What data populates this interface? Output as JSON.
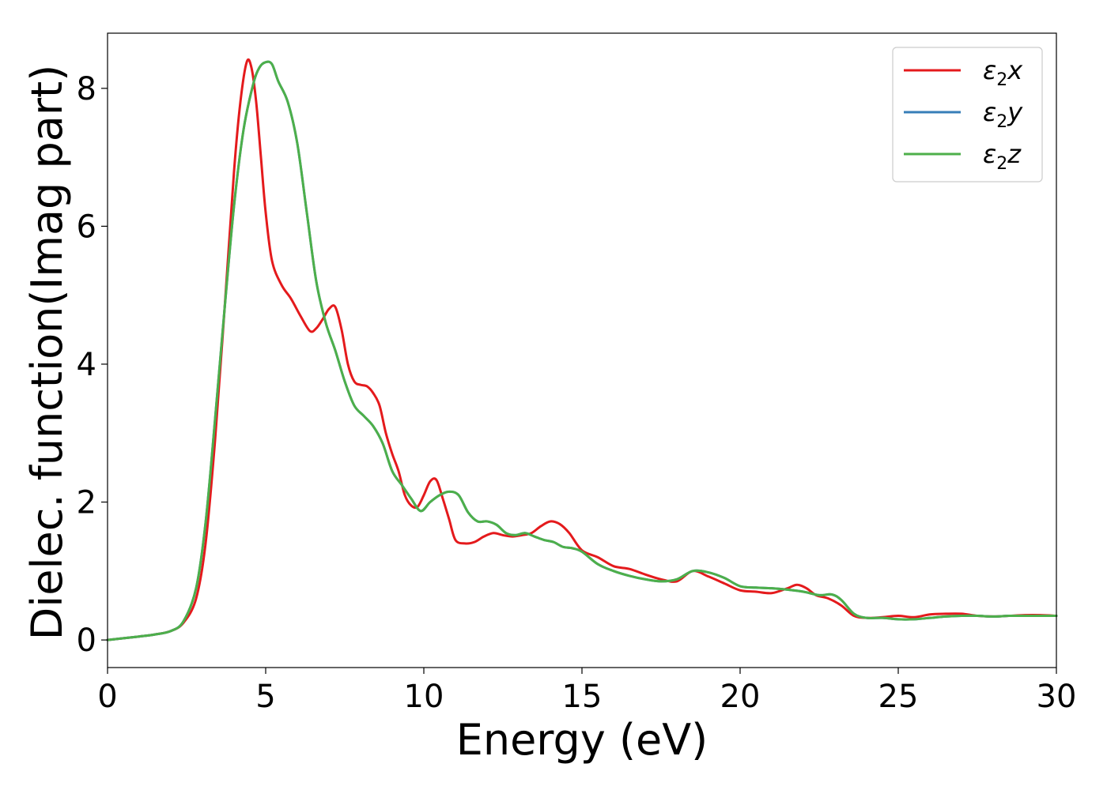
{
  "chart_data": {
    "type": "line",
    "xlabel": "Energy (eV)",
    "ylabel": "Dielec. function(Imag part)",
    "xlim": [
      0,
      30
    ],
    "ylim": [
      -0.4,
      8.8
    ],
    "xticks": [
      0,
      5,
      10,
      15,
      20,
      25,
      30
    ],
    "yticks": [
      0,
      2,
      4,
      6,
      8
    ],
    "grid": false,
    "legend_position": "top-right",
    "series": [
      {
        "name": "ε₂x",
        "legend_main": "ε",
        "legend_sub": "2",
        "legend_suffix": "x",
        "color": "#e41a1c",
        "x": [
          0,
          1,
          1.5,
          2,
          2.4,
          2.8,
          3.1,
          3.4,
          3.7,
          4.0,
          4.2,
          4.4,
          4.55,
          4.7,
          4.85,
          5.0,
          5.2,
          5.5,
          5.8,
          6.1,
          6.4,
          6.6,
          6.8,
          7.0,
          7.2,
          7.4,
          7.6,
          7.8,
          8.0,
          8.2,
          8.4,
          8.6,
          8.8,
          9.0,
          9.2,
          9.4,
          9.6,
          9.8,
          10.0,
          10.2,
          10.4,
          10.6,
          10.8,
          11.0,
          11.3,
          11.6,
          11.9,
          12.2,
          12.5,
          12.8,
          13.1,
          13.4,
          13.7,
          14.0,
          14.3,
          14.6,
          15.0,
          15.5,
          16.0,
          16.5,
          17.0,
          17.5,
          18.0,
          18.5,
          19.0,
          19.5,
          20.0,
          20.5,
          21.0,
          21.5,
          21.8,
          22.1,
          22.4,
          22.8,
          23.2,
          23.6,
          24.0,
          24.5,
          25.0,
          25.5,
          26.0,
          26.5,
          27.0,
          27.5,
          28.0,
          28.5,
          29.0,
          29.5,
          30.0
        ],
        "y": [
          0.0,
          0.05,
          0.08,
          0.13,
          0.25,
          0.6,
          1.4,
          2.9,
          4.8,
          6.8,
          7.8,
          8.38,
          8.3,
          7.8,
          7.0,
          6.2,
          5.5,
          5.15,
          4.95,
          4.7,
          4.48,
          4.52,
          4.65,
          4.8,
          4.83,
          4.5,
          4.0,
          3.75,
          3.7,
          3.68,
          3.58,
          3.4,
          3.0,
          2.7,
          2.45,
          2.1,
          1.95,
          1.93,
          2.1,
          2.3,
          2.32,
          2.05,
          1.75,
          1.45,
          1.4,
          1.42,
          1.5,
          1.55,
          1.52,
          1.5,
          1.52,
          1.55,
          1.65,
          1.72,
          1.68,
          1.55,
          1.3,
          1.2,
          1.07,
          1.03,
          0.95,
          0.88,
          0.85,
          1.0,
          0.92,
          0.82,
          0.72,
          0.7,
          0.68,
          0.75,
          0.8,
          0.75,
          0.65,
          0.6,
          0.5,
          0.35,
          0.32,
          0.33,
          0.35,
          0.33,
          0.37,
          0.38,
          0.38,
          0.35,
          0.34,
          0.35,
          0.36,
          0.36,
          0.35
        ]
      },
      {
        "name": "ε₂y",
        "legend_main": "ε",
        "legend_sub": "2",
        "legend_suffix": "y",
        "color": "#377eb8",
        "x": [
          0,
          1,
          1.5,
          2,
          2.4,
          2.8,
          3.1,
          3.4,
          3.7,
          4.0,
          4.3,
          4.6,
          4.8,
          5.0,
          5.2,
          5.4,
          5.7,
          6.0,
          6.3,
          6.6,
          6.9,
          7.2,
          7.5,
          7.8,
          8.1,
          8.4,
          8.7,
          9.0,
          9.3,
          9.6,
          9.9,
          10.2,
          10.5,
          10.8,
          11.1,
          11.4,
          11.7,
          12.0,
          12.3,
          12.6,
          12.9,
          13.2,
          13.5,
          13.8,
          14.1,
          14.4,
          14.7,
          15.0,
          15.5,
          16.0,
          16.5,
          17.0,
          17.5,
          18.0,
          18.5,
          19.0,
          19.5,
          20.0,
          20.5,
          21.0,
          21.5,
          22.0,
          22.5,
          22.9,
          23.2,
          23.6,
          24.0,
          24.5,
          25.0,
          25.5,
          26.0,
          26.5,
          27.0,
          27.5,
          28.0,
          28.5,
          29.0,
          29.5,
          30.0
        ],
        "y": [
          0.0,
          0.05,
          0.08,
          0.13,
          0.27,
          0.75,
          1.7,
          3.2,
          4.8,
          6.3,
          7.4,
          8.05,
          8.3,
          8.38,
          8.35,
          8.1,
          7.8,
          7.2,
          6.2,
          5.2,
          4.6,
          4.2,
          3.75,
          3.4,
          3.25,
          3.1,
          2.85,
          2.45,
          2.25,
          2.05,
          1.87,
          2.0,
          2.1,
          2.15,
          2.1,
          1.85,
          1.72,
          1.72,
          1.67,
          1.55,
          1.52,
          1.55,
          1.5,
          1.45,
          1.42,
          1.35,
          1.33,
          1.28,
          1.1,
          1.0,
          0.93,
          0.88,
          0.85,
          0.88,
          1.0,
          0.98,
          0.9,
          0.78,
          0.76,
          0.75,
          0.73,
          0.7,
          0.65,
          0.66,
          0.58,
          0.38,
          0.32,
          0.32,
          0.3,
          0.3,
          0.32,
          0.34,
          0.35,
          0.35,
          0.34,
          0.35,
          0.35,
          0.35,
          0.35
        ]
      },
      {
        "name": "ε₂z",
        "legend_main": "ε",
        "legend_sub": "2",
        "legend_suffix": "z",
        "color": "#4daf4a",
        "x": [
          0,
          1,
          1.5,
          2,
          2.4,
          2.8,
          3.1,
          3.4,
          3.7,
          4.0,
          4.3,
          4.6,
          4.8,
          5.0,
          5.2,
          5.4,
          5.7,
          6.0,
          6.3,
          6.6,
          6.9,
          7.2,
          7.5,
          7.8,
          8.1,
          8.4,
          8.7,
          9.0,
          9.3,
          9.6,
          9.9,
          10.2,
          10.5,
          10.8,
          11.1,
          11.4,
          11.7,
          12.0,
          12.3,
          12.6,
          12.9,
          13.2,
          13.5,
          13.8,
          14.1,
          14.4,
          14.7,
          15.0,
          15.5,
          16.0,
          16.5,
          17.0,
          17.5,
          18.0,
          18.5,
          19.0,
          19.5,
          20.0,
          20.5,
          21.0,
          21.5,
          22.0,
          22.5,
          22.9,
          23.2,
          23.6,
          24.0,
          24.5,
          25.0,
          25.5,
          26.0,
          26.5,
          27.0,
          27.5,
          28.0,
          28.5,
          29.0,
          29.5,
          30.0
        ],
        "y": [
          0.0,
          0.05,
          0.08,
          0.13,
          0.27,
          0.75,
          1.7,
          3.2,
          4.8,
          6.3,
          7.4,
          8.05,
          8.3,
          8.38,
          8.35,
          8.1,
          7.8,
          7.2,
          6.2,
          5.2,
          4.6,
          4.2,
          3.75,
          3.4,
          3.25,
          3.1,
          2.85,
          2.45,
          2.25,
          2.05,
          1.87,
          2.0,
          2.1,
          2.15,
          2.1,
          1.85,
          1.72,
          1.72,
          1.67,
          1.55,
          1.52,
          1.55,
          1.5,
          1.45,
          1.42,
          1.35,
          1.33,
          1.28,
          1.1,
          1.0,
          0.93,
          0.88,
          0.85,
          0.88,
          1.0,
          0.98,
          0.9,
          0.78,
          0.76,
          0.75,
          0.73,
          0.7,
          0.65,
          0.66,
          0.58,
          0.38,
          0.32,
          0.32,
          0.3,
          0.3,
          0.32,
          0.34,
          0.35,
          0.35,
          0.34,
          0.35,
          0.35,
          0.35,
          0.35
        ]
      }
    ]
  }
}
